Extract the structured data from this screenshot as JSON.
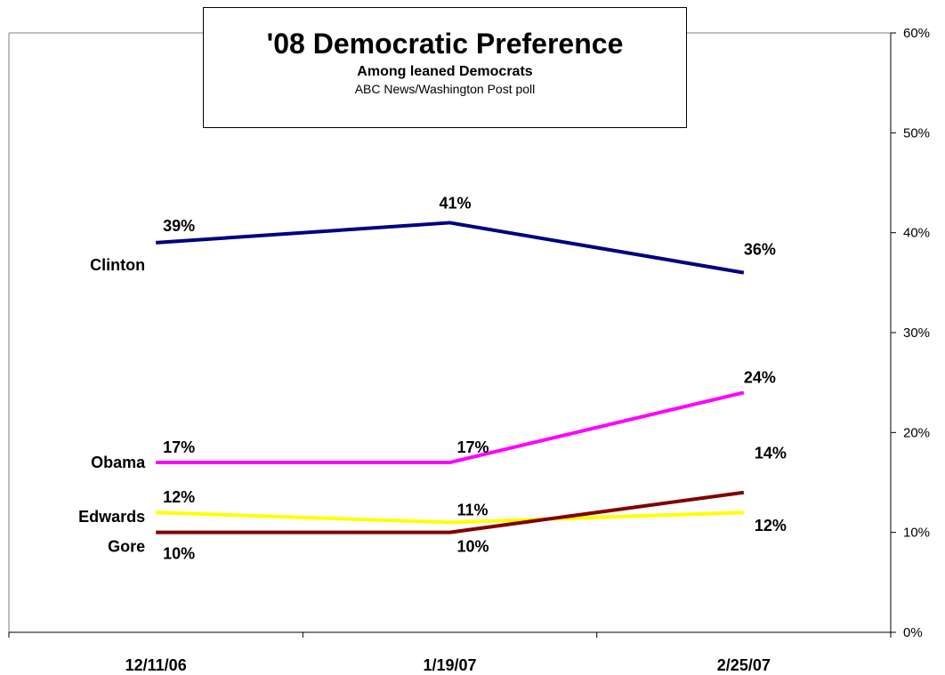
{
  "chart_data": {
    "type": "line",
    "title": "'08 Democratic Preference",
    "subtitle": "Among leaned Democrats",
    "source": "ABC News/Washington Post poll",
    "categories": [
      "12/11/06",
      "1/19/07",
      "2/25/07"
    ],
    "ylim": [
      0,
      60
    ],
    "y_axis_position": "right",
    "y_ticks": [
      "0%",
      "10%",
      "20%",
      "30%",
      "40%",
      "50%",
      "60%"
    ],
    "grid": false,
    "series": [
      {
        "name": "Clinton",
        "color": "#000080",
        "values": [
          39,
          41,
          36
        ],
        "labels": [
          "39%",
          "41%",
          "36%"
        ]
      },
      {
        "name": "Obama",
        "color": "#FF00FF",
        "values": [
          17,
          17,
          24
        ],
        "labels": [
          "17%",
          "17%",
          "24%"
        ]
      },
      {
        "name": "Edwards",
        "color": "#FFFF00",
        "values": [
          12,
          11,
          12
        ],
        "labels": [
          "12%",
          "11%",
          "12%"
        ]
      },
      {
        "name": "Gore",
        "color": "#800000",
        "values": [
          10,
          10,
          14
        ],
        "labels": [
          "10%",
          "10%",
          "14%"
        ]
      }
    ]
  }
}
